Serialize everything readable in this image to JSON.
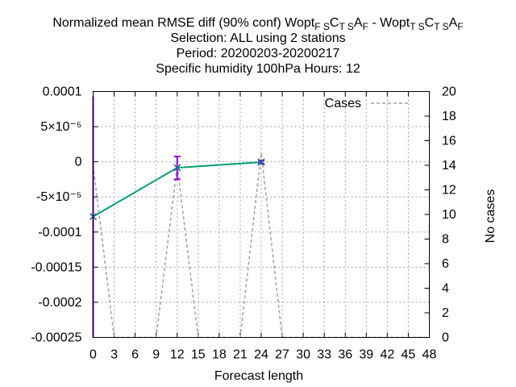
{
  "chart_data": {
    "type": "line",
    "title_lines": [
      {
        "segments": [
          {
            "text": "Normalized mean RMSE diff (90% conf) Wopt"
          },
          {
            "text": "F S",
            "sub": true
          },
          {
            "text": "C"
          },
          {
            "text": "T S",
            "sub": true
          },
          {
            "text": "A"
          },
          {
            "text": "F",
            "sub": true
          },
          {
            "text": " - Wopt"
          },
          {
            "text": "T S",
            "sub": true
          },
          {
            "text": "C"
          },
          {
            "text": "T S",
            "sub": true
          },
          {
            "text": "A"
          },
          {
            "text": "F",
            "sub": true
          }
        ]
      },
      {
        "segments": [
          {
            "text": "Selection: ALL using     2 stations"
          }
        ]
      },
      {
        "segments": [
          {
            "text": "Period: 20200203-20200217"
          }
        ]
      },
      {
        "segments": [
          {
            "text": "Specific humidity 100hPa   Hours:  12"
          }
        ]
      }
    ],
    "xlabel": "Forecast length",
    "ylabel_right": "No cases",
    "xlim": [
      0,
      48
    ],
    "ylim": [
      -0.00025,
      0.0001
    ],
    "y2lim": [
      0,
      20
    ],
    "x_ticks": [
      0,
      3,
      6,
      9,
      12,
      15,
      18,
      21,
      24,
      27,
      30,
      33,
      36,
      39,
      42,
      45,
      48
    ],
    "y_ticks": [
      {
        "value": 0.0001,
        "label": "0.0001"
      },
      {
        "value": 5e-05,
        "label": "5×10⁻⁵"
      },
      {
        "value": 0,
        "label": "0"
      },
      {
        "value": -5e-05,
        "label": "-5×10⁻⁵"
      },
      {
        "value": -0.0001,
        "label": "-0.0001"
      },
      {
        "value": -0.00015,
        "label": "-0.00015"
      },
      {
        "value": -0.0002,
        "label": "-0.0002"
      },
      {
        "value": -0.00025,
        "label": "-0.00025"
      }
    ],
    "y2_ticks": [
      0,
      2,
      4,
      6,
      8,
      10,
      12,
      14,
      16,
      18,
      20
    ],
    "grid": true,
    "legend": {
      "position": "top-right",
      "entries": [
        {
          "label": "Cases",
          "style": "dashed",
          "color": "#a0a0a0"
        }
      ]
    },
    "series": [
      {
        "kind": "diff",
        "color": "#009e73",
        "marker_color": "#2060a0",
        "x": [
          0,
          12,
          24
        ],
        "y": [
          -7.8e-05,
          -8.5e-06,
          -5e-07
        ],
        "err_low": [
          -0.00025,
          -2.5e-05,
          -2.5e-06
        ],
        "err_high": [
          9.3e-05,
          7.5e-06,
          1.5e-06
        ],
        "errorbar_color": "#9400d3"
      },
      {
        "name": "Cases",
        "kind": "cases",
        "axis": "y2",
        "color": "#a0a0a0",
        "x": [
          0,
          3,
          9,
          12,
          15,
          21,
          24,
          27,
          48
        ],
        "y": [
          14,
          0,
          0,
          14,
          0,
          0,
          15,
          0,
          0
        ]
      }
    ]
  }
}
